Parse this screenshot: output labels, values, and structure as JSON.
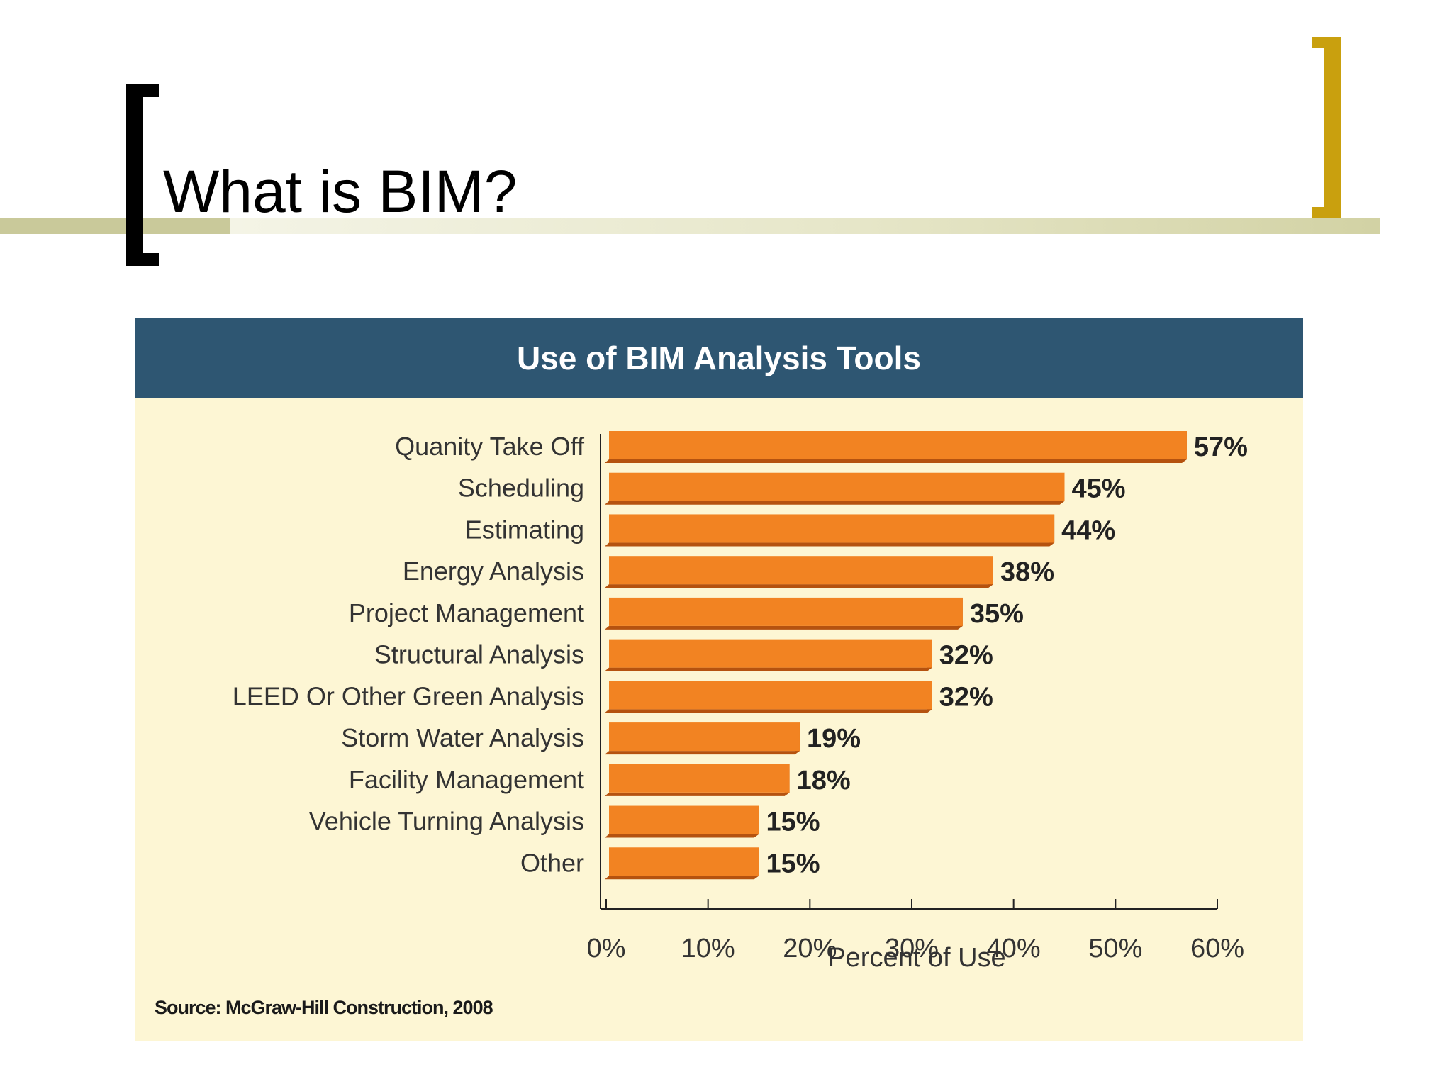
{
  "slide": {
    "title": "What is BIM?"
  },
  "colors": {
    "bar_front": "#f28322",
    "bar_side": "#b5520f",
    "header_bg": "#2e5672",
    "panel_bg": "#fdf6d4",
    "bracket_left": "#000000",
    "bracket_right": "#c9a00e"
  },
  "source": "Source: McGraw-Hill Construction, 2008",
  "chart_data": {
    "type": "bar",
    "orientation": "horizontal",
    "title": "Use of BIM Analysis Tools",
    "xlabel": "Percent of Use",
    "ylabel": "",
    "xlim": [
      0,
      60
    ],
    "x_ticks": [
      "0%",
      "10%",
      "20%",
      "30%",
      "40%",
      "50%",
      "60%"
    ],
    "categories": [
      "Quanity Take Off",
      "Scheduling",
      "Estimating",
      "Energy Analysis",
      "Project Management",
      "Structural Analysis",
      "LEED Or Other Green Analysis",
      "Storm Water Analysis",
      "Facility Management",
      "Vehicle Turning Analysis",
      "Other"
    ],
    "values": [
      57,
      45,
      44,
      38,
      35,
      32,
      32,
      19,
      18,
      15,
      15
    ],
    "value_labels": [
      "57%",
      "45%",
      "44%",
      "38%",
      "35%",
      "32%",
      "32%",
      "19%",
      "18%",
      "15%",
      "15%"
    ],
    "grid": false,
    "legend": "none"
  }
}
